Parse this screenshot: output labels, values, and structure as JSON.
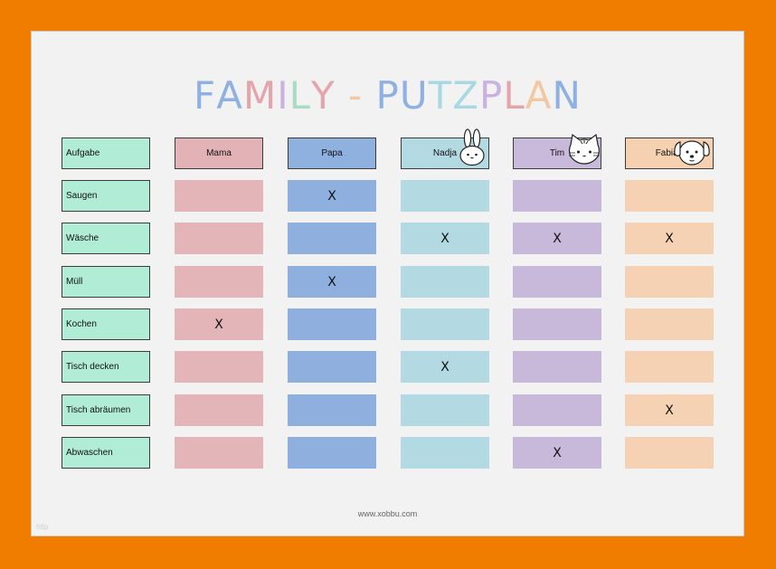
{
  "title": {
    "letters": [
      {
        "ch": "F",
        "color": "#8fb1e2"
      },
      {
        "ch": "A",
        "color": "#8fb1e2"
      },
      {
        "ch": "M",
        "color": "#e3a4ac"
      },
      {
        "ch": "I",
        "color": "#c9b2df"
      },
      {
        "ch": "L",
        "color": "#a9dcc2"
      },
      {
        "ch": "Y",
        "color": "#e3a4ac"
      },
      {
        "ch": " ",
        "color": "#000000"
      },
      {
        "ch": "-",
        "color": "#f3c7a1"
      },
      {
        "ch": " ",
        "color": "#000000"
      },
      {
        "ch": "P",
        "color": "#8fb1e2"
      },
      {
        "ch": "U",
        "color": "#8fb1e2"
      },
      {
        "ch": "T",
        "color": "#a9d8e2"
      },
      {
        "ch": "Z",
        "color": "#a9d8e2"
      },
      {
        "ch": "P",
        "color": "#c9b2df"
      },
      {
        "ch": "L",
        "color": "#e3a4ac"
      },
      {
        "ch": "A",
        "color": "#f3c7a1"
      },
      {
        "ch": "N",
        "color": "#8fb1e2"
      }
    ]
  },
  "task_header": "Aufgabe",
  "members": [
    {
      "name": "Mama",
      "header_color": "#e3b2b6",
      "cell_color": "#e3b5b8",
      "animal": ""
    },
    {
      "name": "Papa",
      "header_color": "#8fb1e0",
      "cell_color": "#8fb0de",
      "animal": ""
    },
    {
      "name": "Nadja",
      "header_color": "#b3d9e3",
      "cell_color": "#b3d9e2",
      "animal": "bunny-icon"
    },
    {
      "name": "Tim",
      "header_color": "#c9b9db",
      "cell_color": "#c8b8d9",
      "animal": "cat-icon"
    },
    {
      "name": "Fabian",
      "header_color": "#f5d1b1",
      "cell_color": "#f5d2b3",
      "animal": "dog-icon"
    }
  ],
  "tasks": [
    {
      "label": "Saugen",
      "marks": [
        "",
        "X",
        "",
        "",
        ""
      ]
    },
    {
      "label": "Wäsche",
      "marks": [
        "",
        "",
        "X",
        "X",
        "X"
      ]
    },
    {
      "label": "Müll",
      "marks": [
        "",
        "X",
        "",
        "",
        ""
      ]
    },
    {
      "label": "Kochen",
      "marks": [
        "X",
        "",
        "",
        "",
        ""
      ]
    },
    {
      "label": "Tisch decken",
      "marks": [
        "",
        "",
        "X",
        "",
        ""
      ]
    },
    {
      "label": "Tisch abräumen",
      "marks": [
        "",
        "",
        "",
        "",
        "X"
      ]
    },
    {
      "label": "Abwaschen",
      "marks": [
        "",
        "",
        "",
        "X",
        ""
      ]
    }
  ],
  "footer": "www.xobbu.com",
  "corner_text": "http"
}
